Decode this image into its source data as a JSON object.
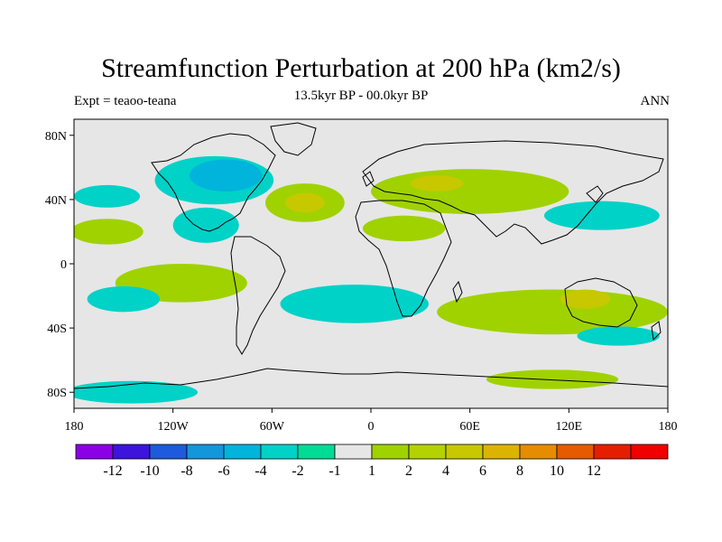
{
  "title": "Streamfunction Perturbation at 200 hPa (km2/s)",
  "subtitle_left": "Expt = teaoo-teana",
  "subtitle_center": "13.5kyr BP - 00.0kyr BP",
  "subtitle_right": "ANN",
  "map": {
    "background_color": "#e6e6e6",
    "lon_range": [
      -180,
      180
    ],
    "lat_range": [
      -90,
      90
    ],
    "x_ticks": [
      "180",
      "120W",
      "60W",
      "0",
      "60E",
      "120E",
      "180"
    ],
    "y_ticks": [
      "80N",
      "40N",
      "0",
      "40S",
      "80S"
    ],
    "contours": [
      {
        "name": "n-america-low",
        "color": "#00d2c8",
        "lon": -95,
        "lat": 52,
        "rx": 36,
        "ry": 15
      },
      {
        "name": "n-america-low-core",
        "color": "#00b4dc",
        "lon": -88,
        "lat": 55,
        "rx": 22,
        "ry": 10
      },
      {
        "name": "mexico-low",
        "color": "#00d2c8",
        "lon": -100,
        "lat": 24,
        "rx": 20,
        "ry": 11
      },
      {
        "name": "n-pacific-mid-low",
        "color": "#00d2c8",
        "lon": -160,
        "lat": 42,
        "rx": 20,
        "ry": 7
      },
      {
        "name": "n-pacific-high",
        "color": "#a0d200",
        "lon": -160,
        "lat": 20,
        "rx": 22,
        "ry": 8
      },
      {
        "name": "n-atlantic-high",
        "color": "#a0d200",
        "lon": -40,
        "lat": 38,
        "rx": 24,
        "ry": 12
      },
      {
        "name": "n-atlantic-high-core",
        "color": "#c8c800",
        "lon": -40,
        "lat": 38,
        "rx": 12,
        "ry": 6
      },
      {
        "name": "eurasia-high",
        "color": "#a0d200",
        "lon": 60,
        "lat": 45,
        "rx": 60,
        "ry": 14
      },
      {
        "name": "eurasia-high-core",
        "color": "#c8c800",
        "lon": 40,
        "lat": 50,
        "rx": 16,
        "ry": 5
      },
      {
        "name": "n-africa-high",
        "color": "#a0d200",
        "lon": 20,
        "lat": 22,
        "rx": 25,
        "ry": 8
      },
      {
        "name": "w-pacific-low",
        "color": "#00d2c8",
        "lon": 140,
        "lat": 30,
        "rx": 35,
        "ry": 9
      },
      {
        "name": "tropical-atlantic-high",
        "color": "#a0d200",
        "lon": -115,
        "lat": -12,
        "rx": 40,
        "ry": 12
      },
      {
        "name": "s-pacific-low",
        "color": "#00d2c8",
        "lon": -150,
        "lat": -22,
        "rx": 22,
        "ry": 8
      },
      {
        "name": "s-atlantic-low",
        "color": "#00d2c8",
        "lon": -10,
        "lat": -25,
        "rx": 45,
        "ry": 12
      },
      {
        "name": "s-indian-high",
        "color": "#a0d200",
        "lon": 110,
        "lat": -30,
        "rx": 70,
        "ry": 14
      },
      {
        "name": "australia-high-core",
        "color": "#c8c800",
        "lon": 130,
        "lat": -22,
        "rx": 15,
        "ry": 6
      },
      {
        "name": "s-indian-low",
        "color": "#00d2c8",
        "lon": 150,
        "lat": -45,
        "rx": 25,
        "ry": 6
      },
      {
        "name": "s-ocean-low-west",
        "color": "#00d2c8",
        "lon": -145,
        "lat": -80,
        "rx": 40,
        "ry": 7
      },
      {
        "name": "s-ocean-high-east",
        "color": "#a0d200",
        "lon": 110,
        "lat": -72,
        "rx": 40,
        "ry": 6
      }
    ]
  },
  "colorbar": {
    "colors": [
      "#8c00e6",
      "#3c14dc",
      "#1e5adc",
      "#1496dc",
      "#00b4dc",
      "#00d2c8",
      "#00dc96",
      "#e6e6e6",
      "#a0d200",
      "#b4d200",
      "#c8c800",
      "#dcb400",
      "#e68c00",
      "#e65a00",
      "#e61e00",
      "#f00000"
    ],
    "labels": [
      "-12",
      "-10",
      "-8",
      "-6",
      "-4",
      "-2",
      "-1",
      "1",
      "2",
      "4",
      "6",
      "8",
      "10",
      "12"
    ]
  }
}
